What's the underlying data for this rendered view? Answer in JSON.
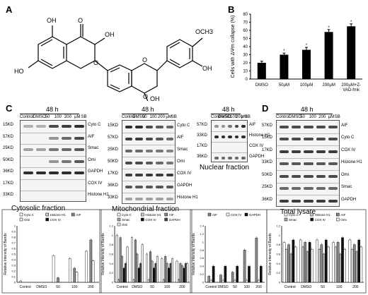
{
  "panels": {
    "A": {
      "letter": "A"
    },
    "B": {
      "letter": "B"
    },
    "C": {
      "letter": "C"
    },
    "D": {
      "letter": "D"
    }
  },
  "structure": {
    "labels": [
      "OH",
      "OH",
      "O",
      "OCH3",
      "HO",
      "OH",
      "O",
      "O",
      "O",
      "OH"
    ]
  },
  "blots": {
    "cytosolic": {
      "header": "48 h",
      "lanes": [
        "Control",
        "DMSO",
        "50",
        "100",
        "200",
        "μM",
        "SB"
      ],
      "rows": [
        {
          "kd": "15KD",
          "protein": "Cyto C"
        },
        {
          "kd": "57KD",
          "protein": "AIF"
        },
        {
          "kd": "25KD",
          "protein": "Smac"
        },
        {
          "kd": "50KD",
          "protein": "Omi"
        },
        {
          "kd": "36KD",
          "protein": "GAPDH"
        },
        {
          "kd": "17KD",
          "protein": "COX IV"
        },
        {
          "kd": "33KD",
          "protein": "Histone H1"
        }
      ],
      "fraction": "Cytosolic fraction"
    },
    "mitochondrial": {
      "header": "48 h",
      "lanes": [
        "Control",
        "DMSO",
        "50",
        "100",
        "200",
        "μM",
        "SB"
      ],
      "rows": [
        {
          "kd": "15KD",
          "protein": "Cyto C"
        },
        {
          "kd": "57KD",
          "protein": "AIF"
        },
        {
          "kd": "25KD",
          "protein": "Smac"
        },
        {
          "kd": "50KD",
          "protein": "Omi"
        },
        {
          "kd": "17KD",
          "protein": "COX IV"
        },
        {
          "kd": "36KD",
          "protein": "GAPDH"
        },
        {
          "kd": "33KD",
          "protein": "Histone H1"
        }
      ],
      "fraction": "Mitochondrial fraction"
    },
    "nuclear": {
      "header": "48 h",
      "lanes": [
        "Control",
        "DMSO",
        "50",
        "100",
        "200",
        "μM",
        "SB"
      ],
      "rows": [
        {
          "kd": "57KD",
          "protein": "AIF"
        },
        {
          "kd": "33KD",
          "protein": "Histone H1"
        },
        {
          "kd": "17KD",
          "protein": "COX IV"
        },
        {
          "kd": "36KD",
          "protein": "GAPDH"
        }
      ],
      "fraction": "Nuclear fraction"
    },
    "total": {
      "header": "48 h",
      "lanes": [
        "Control",
        "DMSO",
        "50",
        "100",
        "200",
        "μM",
        "SB"
      ],
      "rows": [
        {
          "kd": "57KD",
          "protein": "AIF"
        },
        {
          "kd": "15KD",
          "protein": "Cyto C"
        },
        {
          "kd": "17KD",
          "protein": "COX IV"
        },
        {
          "kd": "33KD",
          "protein": "Histone H1"
        },
        {
          "kd": "50KD",
          "protein": "Omi"
        },
        {
          "kd": "25KD",
          "protein": "Smac"
        },
        {
          "kd": "36KD",
          "protein": "GAPDH"
        }
      ],
      "fraction": "Total lysate"
    }
  },
  "chart_data": [
    {
      "type": "bar",
      "panel": "B",
      "ylabel": "Cells with ΔΨm collapse (%)",
      "ylim": [
        0,
        80
      ],
      "yticks": [
        "0",
        "10",
        "20",
        "30",
        "40",
        "50",
        "60",
        "70",
        "80"
      ],
      "categories": [
        "DMSO",
        "50μM",
        "100μM",
        "200μM",
        "200μM+Z-VAD-fmk"
      ],
      "values": [
        20,
        30,
        36,
        58,
        65
      ],
      "errors": [
        2,
        2,
        3,
        3,
        3
      ],
      "annotations": [
        "",
        "*",
        "*",
        "*",
        "*"
      ],
      "color": "#000000"
    },
    {
      "type": "bar",
      "panel": "C-cytosolic",
      "ylabel": "Relative Intensity of Bands",
      "ylim": [
        0,
        1
      ],
      "yticks": [
        "0",
        "0.1",
        "0.2",
        "0.3",
        "0.4",
        "0.5",
        "0.6",
        "0.7",
        "0.8",
        "0.9",
        "1"
      ],
      "categories": [
        "Control",
        "DMSO",
        "50",
        "100",
        "200"
      ],
      "series": [
        {
          "name": "Cyto C",
          "values": [
            0.02,
            0.0,
            0.47,
            0.42,
            0.55
          ],
          "fill": "#ffffff"
        },
        {
          "name": "Histone H1",
          "values": [
            0.0,
            0.0,
            0.0,
            0.0,
            0.0
          ],
          "fill": "#cccccc"
        },
        {
          "name": "AIF",
          "values": [
            0.0,
            0.0,
            0.08,
            0.25,
            0.75
          ],
          "fill": "#888888"
        },
        {
          "name": "Omi",
          "values": [
            0.0,
            0.0,
            0.0,
            0.18,
            0.38
          ],
          "fill": "#f2f2f2"
        },
        {
          "name": "COX IV",
          "values": [
            0.0,
            0.0,
            0.0,
            0.0,
            0.0
          ],
          "fill": "#111111"
        }
      ],
      "legend": "top-left"
    },
    {
      "type": "bar",
      "panel": "C-mitochondrial",
      "ylabel": "Relative Intensity of Bands",
      "ylim": [
        0,
        1.2
      ],
      "yticks": [
        "0",
        "0.2",
        "0.4",
        "0.6",
        "0.8",
        "1",
        "1.2"
      ],
      "categories": [
        "Control",
        "DMSO",
        "50",
        "100",
        "200"
      ],
      "series": [
        {
          "name": "Cyto C",
          "values": [
            1.0,
            0.95,
            0.6,
            0.5,
            0.45
          ],
          "fill": "#ffffff"
        },
        {
          "name": "Histone H1",
          "values": [
            0.05,
            0.05,
            0.05,
            0.05,
            0.05
          ],
          "fill": "#cccccc"
        },
        {
          "name": "AIF",
          "values": [
            0.95,
            0.9,
            0.65,
            0.55,
            0.4
          ],
          "fill": "#888888"
        },
        {
          "name": "Smac",
          "values": [
            0.55,
            0.6,
            0.45,
            0.4,
            0.35
          ],
          "fill": "#aaaaaa"
        },
        {
          "name": "COX IV",
          "values": [
            0.3,
            0.3,
            0.3,
            0.3,
            0.3
          ],
          "fill": "#111111"
        },
        {
          "name": "GAPDH",
          "values": [
            0.4,
            0.4,
            0.4,
            0.4,
            0.4
          ],
          "fill": "#444444"
        },
        {
          "name": "Omi",
          "values": [
            0.75,
            0.8,
            0.55,
            0.5,
            0.4
          ],
          "fill": "#f2f2f2"
        }
      ],
      "legend": "top"
    },
    {
      "type": "bar",
      "panel": "C-nuclear",
      "ylabel": "Relative Intensity of Bands",
      "ylim": [
        0,
        1.4
      ],
      "yticks": [
        "0",
        "0.2",
        "0.4",
        "0.6",
        "0.8",
        "1",
        "1.2",
        "1.4"
      ],
      "categories": [
        "Control",
        "DMSO",
        "50",
        "100",
        "200"
      ],
      "series": [
        {
          "name": "AIF",
          "values": [
            0.15,
            0.18,
            0.25,
            0.8,
            1.1
          ],
          "fill": "#888888"
        },
        {
          "name": "COX IV",
          "values": [
            0.05,
            0.05,
            0.05,
            0.05,
            0.05
          ],
          "fill": "#ffffff"
        },
        {
          "name": "GAPDH",
          "values": [
            0.4,
            0.4,
            0.4,
            0.4,
            0.4
          ],
          "fill": "#111111"
        }
      ],
      "legend": "top"
    },
    {
      "type": "bar",
      "panel": "D-total",
      "ylabel": "Relative Intensity of Bands",
      "ylim": [
        0,
        1.2
      ],
      "yticks": [
        "0",
        "0.2",
        "0.4",
        "0.6",
        "0.8",
        "1",
        "1.2"
      ],
      "categories": [
        "Control",
        "DMSO",
        "50",
        "100",
        "200"
      ],
      "series": [
        {
          "name": "Cyto C",
          "values": [
            0.85,
            0.9,
            0.9,
            0.85,
            0.9
          ],
          "fill": "#ffffff"
        },
        {
          "name": "Histone H1",
          "values": [
            0.7,
            0.75,
            0.7,
            0.75,
            0.7
          ],
          "fill": "#cccccc"
        },
        {
          "name": "AIF",
          "values": [
            0.8,
            0.85,
            0.8,
            0.85,
            0.8
          ],
          "fill": "#888888"
        },
        {
          "name": "Smac",
          "values": [
            0.6,
            0.65,
            0.6,
            0.6,
            0.65
          ],
          "fill": "#aaaaaa"
        },
        {
          "name": "COX IV",
          "values": [
            0.9,
            0.85,
            0.9,
            0.95,
            0.9
          ],
          "fill": "#111111"
        },
        {
          "name": "Omi",
          "values": [
            0.75,
            0.7,
            0.75,
            0.7,
            0.75
          ],
          "fill": "#f2f2f2"
        }
      ],
      "legend": "top"
    }
  ]
}
